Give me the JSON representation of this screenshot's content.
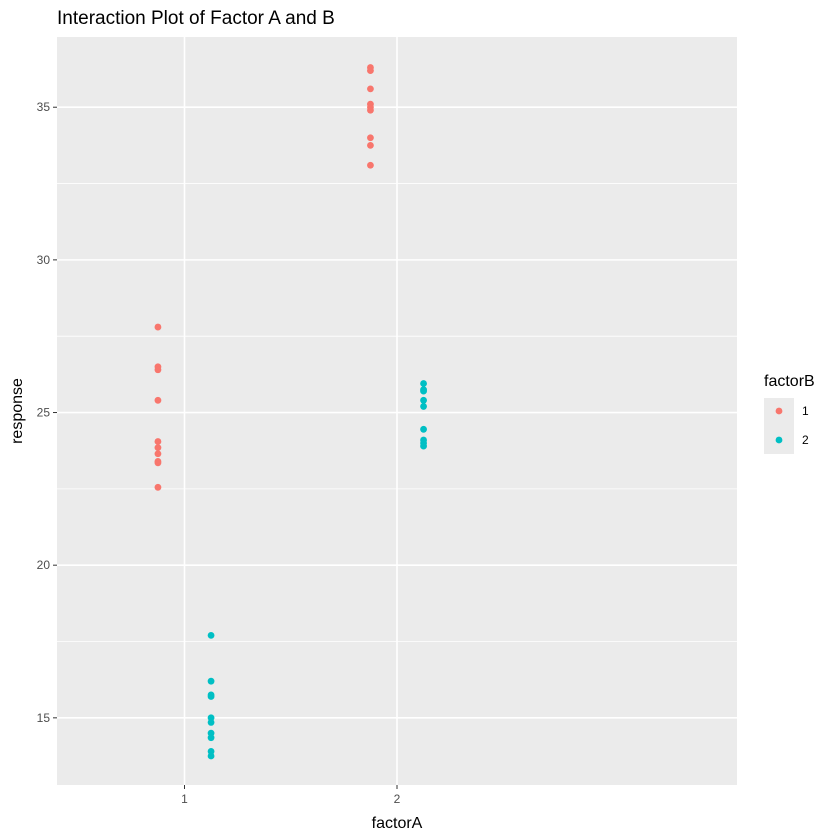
{
  "chart_data": {
    "type": "scatter",
    "title": "Interaction Plot of Factor A and B",
    "xlabel": "factorA",
    "ylabel": "response",
    "categories": [
      "1",
      "2"
    ],
    "ylim": [
      12.8,
      37.3
    ],
    "y_ticks": [
      15,
      20,
      25,
      30,
      35
    ],
    "y_tick_labels": [
      "15",
      "20",
      "25",
      "30",
      "35"
    ],
    "grid": true,
    "legend": {
      "title": "factorB",
      "position": "right",
      "entries": [
        "1",
        "2"
      ]
    },
    "series": [
      {
        "name": "1",
        "color": "#F8766D",
        "points": [
          {
            "x": "1",
            "y": [
              27.8,
              26.5,
              26.4,
              25.4,
              24.05,
              23.85,
              23.65,
              23.4,
              23.35,
              22.55
            ]
          },
          {
            "x": "2",
            "y": [
              36.3,
              36.2,
              35.6,
              35.1,
              35.0,
              34.9,
              34.0,
              33.75,
              33.1
            ]
          }
        ]
      },
      {
        "name": "2",
        "color": "#00BFC4",
        "points": [
          {
            "x": "1",
            "y": [
              17.7,
              16.2,
              15.75,
              15.7,
              15.0,
              14.85,
              14.5,
              14.35,
              13.9,
              13.75
            ]
          },
          {
            "x": "2",
            "y": [
              25.95,
              25.75,
              25.7,
              25.4,
              25.2,
              24.45,
              24.1,
              24.0,
              23.9
            ]
          }
        ]
      }
    ]
  }
}
